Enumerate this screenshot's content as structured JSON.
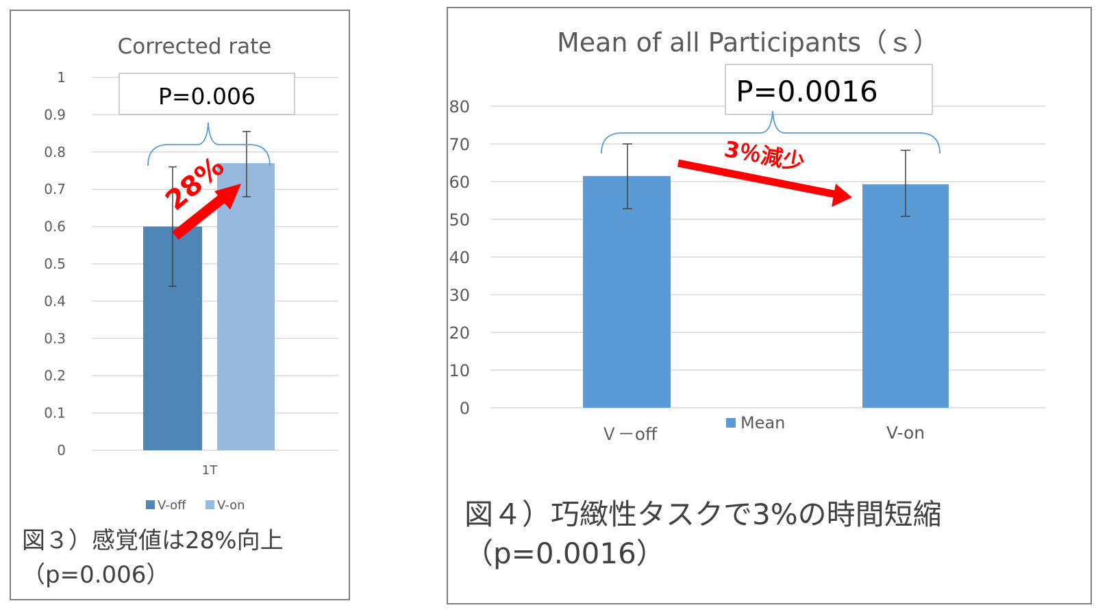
{
  "colors": {
    "voff_left": "#4f86b8",
    "von_left": "#97b9dd",
    "bar_right": "#5b9bd5",
    "grid": "#d9d9d9",
    "axis_text": "#595959",
    "title_text": "#595959",
    "bracket": "#5b9bd5",
    "arrow": "#ff0000",
    "errorbar": "#404040"
  },
  "left_panel": {
    "caption_line1": "図３）感覚値は28%向上",
    "caption_line2": "（p=0.006）"
  },
  "right_panel": {
    "caption_line1": "図４）巧緻性タスクで3%の時間短縮",
    "caption_line2": "（p=0.0016）"
  },
  "chart_data": [
    {
      "type": "bar",
      "title": "Corrected rate",
      "categories": [
        "1T"
      ],
      "series": [
        {
          "name": "V-off",
          "values": [
            0.6
          ],
          "error_low": [
            0.44
          ],
          "error_high": [
            0.76
          ],
          "color": "#4f86b8"
        },
        {
          "name": "V-on",
          "values": [
            0.77
          ],
          "error_low": [
            0.68
          ],
          "error_high": [
            0.855
          ],
          "color": "#97b9dd"
        }
      ],
      "ylim": [
        0,
        1
      ],
      "yticks": [
        "0",
        "0.1",
        "0.2",
        "0.3",
        "0.4",
        "0.5",
        "0.6",
        "0.7",
        "0.8",
        "0.9",
        "1"
      ],
      "grid": true,
      "legend": "bottom",
      "annotations": {
        "pvalue": "P=0.006",
        "change": "28%"
      }
    },
    {
      "type": "bar",
      "title": "Mean of all Participants（ｓ）",
      "categories": [
        "Ｖ－off",
        "V-on"
      ],
      "series": [
        {
          "name": "Mean",
          "values": [
            61.5,
            59.3
          ],
          "error_low": [
            52.8,
            50.8
          ],
          "error_high": [
            70,
            68.3
          ],
          "color": "#5b9bd5"
        }
      ],
      "ylim": [
        0,
        80
      ],
      "yticks": [
        "0",
        "10",
        "20",
        "30",
        "40",
        "50",
        "60",
        "70",
        "80"
      ],
      "grid": true,
      "legend": "bottom",
      "annotations": {
        "pvalue": "P=0.0016",
        "change": "3％減少"
      }
    }
  ]
}
